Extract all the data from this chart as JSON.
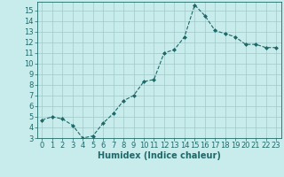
{
  "x": [
    0,
    1,
    2,
    3,
    4,
    5,
    6,
    7,
    8,
    9,
    10,
    11,
    12,
    13,
    14,
    15,
    16,
    17,
    18,
    19,
    20,
    21,
    22,
    23
  ],
  "y": [
    4.7,
    5.0,
    4.8,
    4.2,
    3.0,
    3.2,
    4.4,
    5.3,
    6.5,
    7.0,
    8.3,
    8.5,
    11.0,
    11.3,
    12.5,
    15.5,
    14.5,
    13.1,
    12.8,
    12.5,
    11.8,
    11.8,
    11.5,
    11.5
  ],
  "title": "",
  "xlabel": "Humidex (Indice chaleur)",
  "ylabel": "",
  "bg_color": "#c8ecec",
  "grid_color": "#a0c8c8",
  "line_color": "#1e6868",
  "marker_color": "#1e6868",
  "xlim": [
    -0.5,
    23.5
  ],
  "ylim": [
    3,
    15.8
  ],
  "yticks": [
    3,
    4,
    5,
    6,
    7,
    8,
    9,
    10,
    11,
    12,
    13,
    14,
    15
  ],
  "xticks": [
    0,
    1,
    2,
    3,
    4,
    5,
    6,
    7,
    8,
    9,
    10,
    11,
    12,
    13,
    14,
    15,
    16,
    17,
    18,
    19,
    20,
    21,
    22,
    23
  ],
  "xlabel_fontsize": 7,
  "tick_fontsize": 6
}
